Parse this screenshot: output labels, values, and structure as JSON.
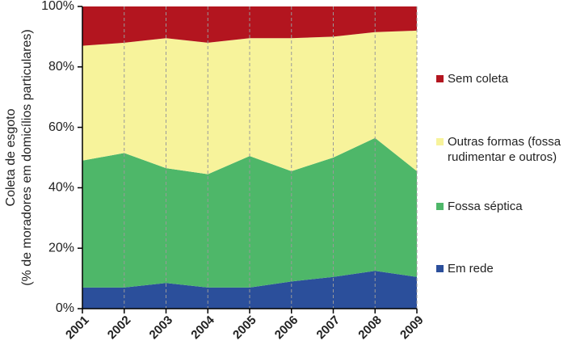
{
  "chart_data": {
    "type": "stacked-area",
    "y_label": [
      "Coleta de esgoto",
      "(% de moradores em domicílios particulares)"
    ],
    "categories": [
      "2001",
      "2002",
      "2003",
      "2004",
      "2005",
      "2006",
      "2007",
      "2008",
      "2009"
    ],
    "series": [
      {
        "name": "Sem coleta",
        "color": "#b3151f",
        "values": [
          13,
          12,
          10.5,
          12,
          10.5,
          10.5,
          10,
          8.5,
          8
        ]
      },
      {
        "name": "Outras formas (fossa rudimentar e outros)",
        "color": "#f7f39b",
        "values": [
          38,
          36.5,
          43,
          43.5,
          39,
          44,
          40,
          35,
          46.5
        ]
      },
      {
        "name": "Fossa séptica",
        "color": "#4eb769",
        "values": [
          42,
          44.5,
          38,
          37.5,
          43.5,
          36.5,
          39.5,
          44,
          35
        ]
      },
      {
        "name": "Em rede",
        "color": "#2b4f9b",
        "values": [
          7,
          7,
          8.5,
          7,
          7,
          9,
          10.5,
          12.5,
          10.5
        ]
      }
    ],
    "ylim": [
      0,
      100
    ],
    "yticks": [
      {
        "value": 0,
        "label": "0%"
      },
      {
        "value": 20,
        "label": "20%"
      },
      {
        "value": 40,
        "label": "40%"
      },
      {
        "value": 60,
        "label": "60%"
      },
      {
        "value": 80,
        "label": "80%"
      },
      {
        "value": 100,
        "label": "100%"
      }
    ]
  }
}
